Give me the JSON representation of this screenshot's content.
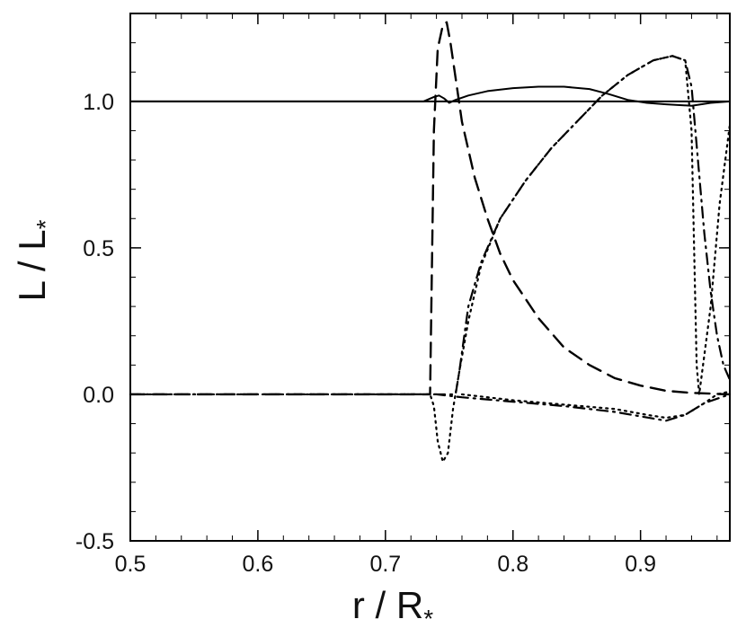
{
  "chart_data": {
    "type": "line",
    "title": "",
    "xlabel_main": "r / R",
    "xlabel_sub": "*",
    "ylabel_main": "L / L",
    "ylabel_sub": "*",
    "xlim": [
      0.5,
      0.97
    ],
    "ylim": [
      -0.5,
      1.3
    ],
    "xticks": [
      0.5,
      0.6,
      0.7,
      0.8,
      0.9
    ],
    "xtick_labels": [
      "0.5",
      "0.6",
      "0.7",
      "0.8",
      "0.9"
    ],
    "yticks": [
      -0.5,
      0.0,
      0.5,
      1.0
    ],
    "ytick_labels": [
      "-0.5",
      "0.0",
      "0.5",
      "1.0"
    ],
    "grid": false,
    "series": [
      {
        "style": "solid",
        "points": [
          [
            0.5,
            1.0
          ],
          [
            0.73,
            1.0
          ],
          [
            0.738,
            1.015
          ],
          [
            0.742,
            1.02
          ],
          [
            0.746,
            1.01
          ],
          [
            0.75,
            0.995
          ],
          [
            0.755,
            1.005
          ],
          [
            0.765,
            1.02
          ],
          [
            0.78,
            1.035
          ],
          [
            0.8,
            1.045
          ],
          [
            0.82,
            1.05
          ],
          [
            0.84,
            1.05
          ],
          [
            0.86,
            1.042
          ],
          [
            0.875,
            1.025
          ],
          [
            0.89,
            1.005
          ],
          [
            0.905,
            0.995
          ],
          [
            0.92,
            0.99
          ],
          [
            0.94,
            0.985
          ],
          [
            0.955,
            0.995
          ],
          [
            0.97,
            1.0
          ]
        ]
      },
      {
        "style": "solid",
        "points": [
          [
            0.5,
            1.0
          ],
          [
            0.97,
            1.0
          ]
        ]
      },
      {
        "style": "dashed",
        "points": [
          [
            0.5,
            0.0
          ],
          [
            0.735,
            0.0
          ],
          [
            0.738,
            0.9
          ],
          [
            0.741,
            1.18
          ],
          [
            0.745,
            1.26
          ],
          [
            0.748,
            1.27
          ],
          [
            0.751,
            1.2
          ],
          [
            0.755,
            1.08
          ],
          [
            0.76,
            0.93
          ],
          [
            0.77,
            0.74
          ],
          [
            0.78,
            0.6
          ],
          [
            0.79,
            0.48
          ],
          [
            0.8,
            0.39
          ],
          [
            0.82,
            0.26
          ],
          [
            0.84,
            0.16
          ],
          [
            0.86,
            0.1
          ],
          [
            0.88,
            0.055
          ],
          [
            0.9,
            0.03
          ],
          [
            0.92,
            0.012
          ],
          [
            0.94,
            0.005
          ],
          [
            0.97,
            0.0
          ]
        ]
      },
      {
        "style": "dotted",
        "points": [
          [
            0.5,
            0.0
          ],
          [
            0.735,
            0.0
          ],
          [
            0.738,
            -0.04
          ],
          [
            0.741,
            -0.16
          ],
          [
            0.745,
            -0.23
          ],
          [
            0.749,
            -0.2
          ],
          [
            0.753,
            -0.05
          ],
          [
            0.758,
            0.08
          ],
          [
            0.765,
            0.25
          ],
          [
            0.775,
            0.44
          ],
          [
            0.79,
            0.6
          ],
          [
            0.81,
            0.73
          ],
          [
            0.83,
            0.84
          ],
          [
            0.85,
            0.93
          ],
          [
            0.87,
            1.02
          ],
          [
            0.89,
            1.09
          ],
          [
            0.91,
            1.14
          ],
          [
            0.925,
            1.155
          ],
          [
            0.935,
            1.14
          ],
          [
            0.94,
            0.9
          ],
          [
            0.942,
            0.5
          ],
          [
            0.944,
            0.1
          ],
          [
            0.946,
            0.0
          ],
          [
            0.955,
            0.3
          ],
          [
            0.962,
            0.65
          ],
          [
            0.97,
            0.92
          ]
        ]
      },
      {
        "style": "dashdot",
        "points": [
          [
            0.5,
            0.0
          ],
          [
            0.755,
            0.0
          ],
          [
            0.758,
            0.08
          ],
          [
            0.765,
            0.3
          ],
          [
            0.775,
            0.45
          ],
          [
            0.79,
            0.6
          ],
          [
            0.81,
            0.73
          ],
          [
            0.83,
            0.84
          ],
          [
            0.85,
            0.93
          ],
          [
            0.87,
            1.02
          ],
          [
            0.89,
            1.09
          ],
          [
            0.91,
            1.14
          ],
          [
            0.925,
            1.155
          ],
          [
            0.935,
            1.14
          ],
          [
            0.94,
            1.05
          ],
          [
            0.945,
            0.8
          ],
          [
            0.95,
            0.55
          ],
          [
            0.955,
            0.35
          ],
          [
            0.96,
            0.2
          ],
          [
            0.965,
            0.1
          ],
          [
            0.97,
            0.05
          ]
        ]
      },
      {
        "style": "dashdot",
        "points": [
          [
            0.5,
            0.0
          ],
          [
            0.74,
            0.0
          ],
          [
            0.76,
            -0.01
          ],
          [
            0.8,
            -0.025
          ],
          [
            0.84,
            -0.04
          ],
          [
            0.88,
            -0.06
          ],
          [
            0.9,
            -0.075
          ],
          [
            0.92,
            -0.09
          ],
          [
            0.935,
            -0.07
          ],
          [
            0.95,
            -0.03
          ],
          [
            0.97,
            0.0
          ]
        ]
      },
      {
        "style": "dotted",
        "points": [
          [
            0.76,
            0.0
          ],
          [
            0.8,
            -0.02
          ],
          [
            0.84,
            -0.035
          ],
          [
            0.88,
            -0.05
          ],
          [
            0.905,
            -0.07
          ],
          [
            0.92,
            -0.08
          ],
          [
            0.935,
            -0.07
          ],
          [
            0.95,
            -0.03
          ],
          [
            0.96,
            0.0
          ],
          [
            0.97,
            0.01
          ]
        ]
      }
    ]
  }
}
